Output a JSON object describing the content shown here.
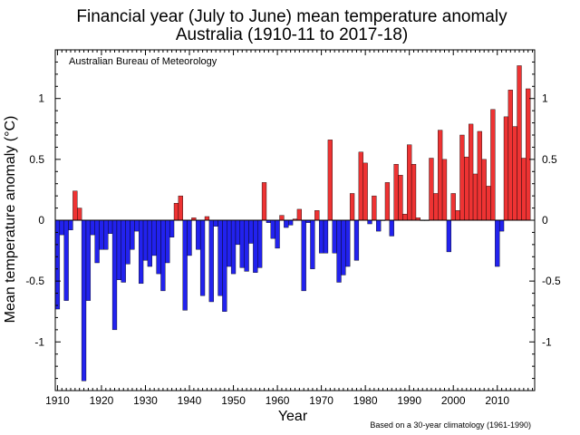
{
  "chart_data": {
    "type": "bar",
    "title": "Financial year (July to June) mean temperature anomaly",
    "subtitle": "Australia (1910-11 to 2017-18)",
    "xlabel": "Year",
    "ylabel": "Mean temperature anomaly (°C)",
    "source_label": "Australian Bureau of Meteorology",
    "footnote": "Based on a 30-year climatology (1961-1990)",
    "xlim": [
      1909.5,
      2018.5
    ],
    "ylim": [
      -1.4,
      1.4
    ],
    "x_ticks": [
      1910,
      1920,
      1930,
      1940,
      1950,
      1960,
      1970,
      1980,
      1990,
      2000,
      2010
    ],
    "y_ticks": [
      -1,
      -0.5,
      0,
      0.5,
      1
    ],
    "grid": false,
    "colors": {
      "positive": "#ee3333",
      "negative": "#2222ee",
      "outline": "#000000"
    },
    "x": [
      1910,
      1911,
      1912,
      1913,
      1914,
      1915,
      1916,
      1917,
      1918,
      1919,
      1920,
      1921,
      1922,
      1923,
      1924,
      1925,
      1926,
      1927,
      1928,
      1929,
      1930,
      1931,
      1932,
      1933,
      1934,
      1935,
      1936,
      1937,
      1938,
      1939,
      1940,
      1941,
      1942,
      1943,
      1944,
      1945,
      1946,
      1947,
      1948,
      1949,
      1950,
      1951,
      1952,
      1953,
      1954,
      1955,
      1956,
      1957,
      1958,
      1959,
      1960,
      1961,
      1962,
      1963,
      1964,
      1965,
      1966,
      1967,
      1968,
      1969,
      1970,
      1971,
      1972,
      1973,
      1974,
      1975,
      1976,
      1977,
      1978,
      1979,
      1980,
      1981,
      1982,
      1983,
      1984,
      1985,
      1986,
      1987,
      1988,
      1989,
      1990,
      1991,
      1992,
      1993,
      1994,
      1995,
      1996,
      1997,
      1998,
      1999,
      2000,
      2001,
      2002,
      2003,
      2004,
      2005,
      2006,
      2007,
      2008,
      2009,
      2010,
      2011,
      2012,
      2013,
      2014,
      2015,
      2016,
      2017
    ],
    "values": [
      -0.73,
      -0.12,
      -0.66,
      -0.08,
      0.24,
      0.1,
      -1.32,
      -0.66,
      -0.12,
      -0.35,
      -0.24,
      -0.24,
      -0.11,
      -0.9,
      -0.49,
      -0.51,
      -0.36,
      -0.24,
      -0.09,
      -0.52,
      -0.33,
      -0.38,
      -0.29,
      -0.44,
      -0.58,
      -0.35,
      -0.14,
      0.14,
      0.2,
      -0.74,
      -0.29,
      0.02,
      -0.24,
      -0.62,
      0.03,
      -0.67,
      -0.05,
      -0.62,
      -0.75,
      -0.38,
      -0.44,
      -0.2,
      -0.39,
      -0.42,
      -0.19,
      -0.43,
      -0.39,
      0.31,
      -0.02,
      -0.15,
      -0.23,
      0.04,
      -0.06,
      -0.04,
      0.01,
      0.09,
      -0.58,
      -0.02,
      -0.4,
      0.08,
      -0.27,
      -0.27,
      0.66,
      -0.27,
      -0.51,
      -0.45,
      -0.38,
      0.22,
      -0.33,
      0.56,
      0.47,
      -0.03,
      0.2,
      -0.09,
      0.0,
      0.31,
      -0.13,
      0.46,
      0.37,
      0.05,
      0.62,
      0.46,
      0.02,
      0.0,
      0.0,
      0.51,
      0.22,
      0.74,
      0.5,
      -0.26,
      0.22,
      0.08,
      0.7,
      0.52,
      0.79,
      0.38,
      0.73,
      0.5,
      0.28,
      0.91,
      -0.38,
      -0.09,
      0.85,
      1.07,
      0.77,
      1.27,
      0.51,
      1.08
    ]
  }
}
